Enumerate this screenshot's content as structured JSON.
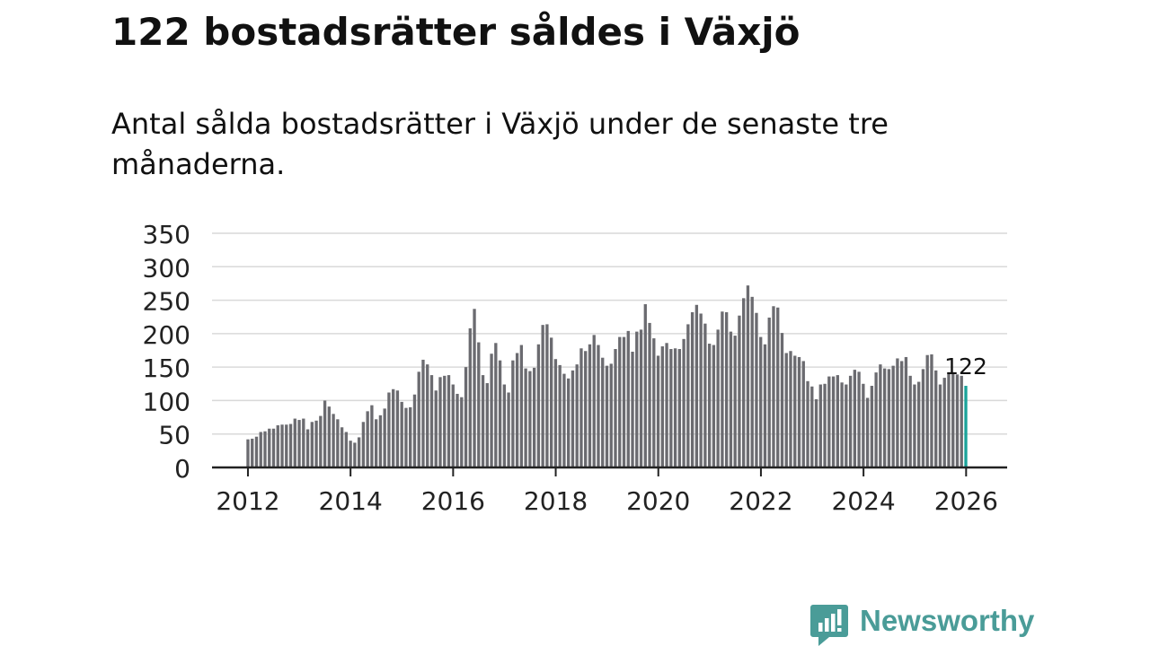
{
  "header": {
    "title": "122 bostadsrätter såldes i Växjö",
    "subtitle": "Antal sålda bostadsrätter i Växjö under de senaste tre månaderna."
  },
  "brand": {
    "name": "Newsworthy",
    "color": "#4a9c98"
  },
  "colors": {
    "bar": "#6b6b70",
    "highlight": "#1aa39a",
    "grid": "#d9d9d9",
    "axis": "#222222"
  },
  "chart_data": {
    "type": "bar",
    "title": "Antal sålda bostadsrätter i Växjö",
    "xlabel": "",
    "ylabel": "",
    "ylim": [
      0,
      350
    ],
    "yticks": [
      0,
      50,
      100,
      150,
      200,
      250,
      300,
      350
    ],
    "xlim": [
      2011.3,
      2026.8
    ],
    "xticks": [
      2012,
      2014,
      2016,
      2018,
      2020,
      2022,
      2024,
      2026
    ],
    "x_start": 2012.0,
    "x_step": 0.0833,
    "highlight_label": "122",
    "values": [
      42,
      43,
      46,
      53,
      54,
      58,
      58,
      63,
      64,
      64,
      65,
      73,
      71,
      73,
      57,
      68,
      70,
      77,
      100,
      91,
      80,
      72,
      60,
      53,
      40,
      37,
      45,
      68,
      84,
      93,
      72,
      78,
      88,
      112,
      117,
      115,
      98,
      89,
      90,
      109,
      143,
      161,
      154,
      138,
      115,
      135,
      137,
      138,
      124,
      110,
      105,
      150,
      208,
      237,
      187,
      138,
      126,
      170,
      186,
      160,
      124,
      112,
      160,
      171,
      183,
      148,
      144,
      149,
      184,
      213,
      214,
      194,
      162,
      153,
      140,
      133,
      145,
      154,
      178,
      174,
      184,
      198,
      183,
      164,
      152,
      155,
      177,
      195,
      195,
      204,
      173,
      203,
      206,
      244,
      216,
      193,
      167,
      181,
      186,
      177,
      178,
      177,
      192,
      214,
      232,
      243,
      230,
      215,
      185,
      183,
      206,
      233,
      232,
      203,
      197,
      227,
      253,
      272,
      255,
      231,
      195,
      184,
      224,
      241,
      239,
      201,
      171,
      174,
      167,
      165,
      159,
      129,
      121,
      102,
      124,
      125,
      136,
      136,
      138,
      127,
      124,
      137,
      146,
      143,
      125,
      104,
      122,
      142,
      154,
      148,
      147,
      152,
      163,
      159,
      165,
      137,
      124,
      128,
      147,
      168,
      169,
      145,
      124,
      134,
      140,
      140,
      139,
      137,
      122
    ]
  }
}
